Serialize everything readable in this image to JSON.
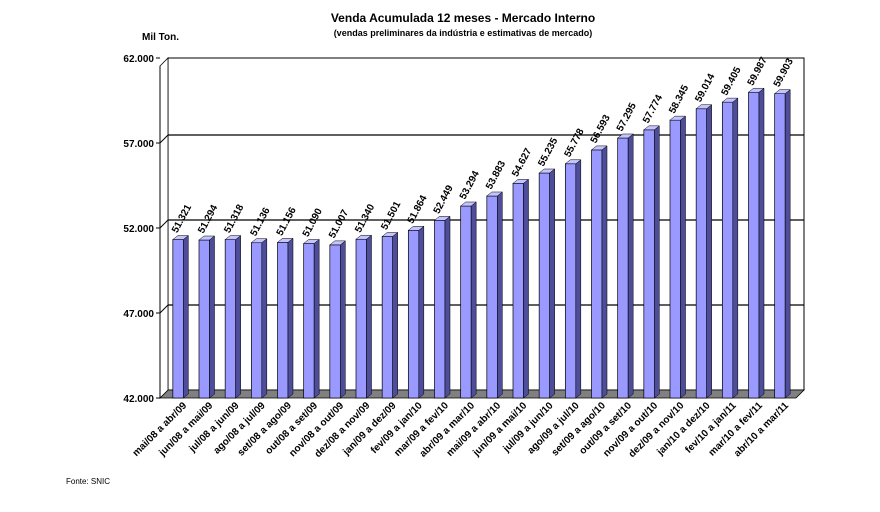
{
  "chart_data": {
    "type": "bar",
    "title": "Venda Acumulada  12 meses -  Mercado Interno",
    "subtitle": "(vendas preliminares da indústria e estimativas de mercado)",
    "ylabel": "Mil Ton.",
    "source": "Fonte: SNIC",
    "ylim": [
      42000,
      62000
    ],
    "yticks": [
      42000,
      47000,
      52000,
      57000,
      62000
    ],
    "ytick_labels": [
      "42.000",
      "47.000",
      "52.000",
      "57.000",
      "62.000"
    ],
    "grid": true,
    "bar_color": "#9999ff",
    "categories": [
      "mai/08 a abr/09",
      "jun/08 a mai/09",
      "jul/08 a jun/09",
      "ago/08 a jul/09",
      "set/08 a ago/09",
      "out/08 a set/09",
      "nov/08 a out/09",
      "dez/08 a nov/09",
      "jan/09 a dez/09",
      "fev/09 a jan/10",
      "mar/09 a fev/10",
      "abr/09 a mar/10",
      "mai/09 a abr/10",
      "jun/09 a mai/10",
      "jul/09 a jun/10",
      "ago/09 a jul/10",
      "set/09 a ago/10",
      "out/09 a set/10",
      "nov/09 a out/10",
      "dez/09 a nov/10",
      "jan/10 a dez/10",
      "fev/10 a jan/11",
      "mar/10 a fev/11",
      "abr/10 a mar/11"
    ],
    "values": [
      51321,
      51294,
      51318,
      51136,
      51156,
      51090,
      51007,
      51340,
      51501,
      51864,
      52449,
      53294,
      53883,
      54627,
      55235,
      55778,
      56593,
      57295,
      57774,
      58345,
      59014,
      59405,
      59987,
      59903
    ],
    "value_labels": [
      "51.321",
      "51.294",
      "51.318",
      "51.136",
      "51.156",
      "51.090",
      "51.007",
      "51.340",
      "51.501",
      "51.864",
      "52.449",
      "53.294",
      "53.883",
      "54.627",
      "55.235",
      "55.778",
      "56.593",
      "57.295",
      "57.774",
      "58.345",
      "59.014",
      "59.405",
      "59.987",
      "59.903"
    ]
  }
}
